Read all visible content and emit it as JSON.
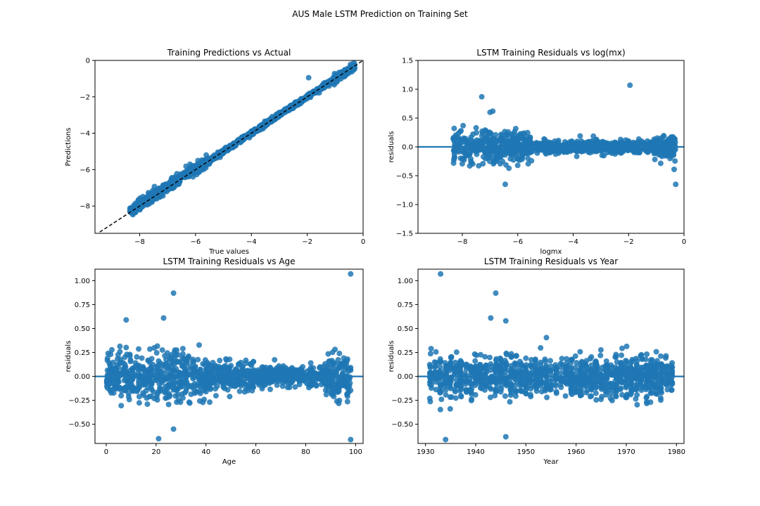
{
  "suptitle": "AUS Male LSTM Prediction on Training Set",
  "colors": {
    "points": "#1f77b4",
    "identity_line": "#000000",
    "zero_line": "#1f77b4"
  },
  "chart_data": [
    {
      "id": "pred-vs-actual",
      "type": "scatter",
      "title": "Training Predictions vs Actual",
      "xlabel": "True values",
      "ylabel": "Predictions",
      "xlim": [
        -9.6,
        0
      ],
      "ylim": [
        -9.5,
        0
      ],
      "xticks": [
        -8,
        -6,
        -4,
        -2,
        0
      ],
      "yticks": [
        -8,
        -6,
        -4,
        -2,
        0
      ],
      "identity_line": true,
      "x_range": [
        -8.35,
        -0.3
      ],
      "y_relation": "y ≈ x with small scatter",
      "outliers": [
        {
          "x": -1.95,
          "y": -0.95
        }
      ]
    },
    {
      "id": "resid-vs-logmx",
      "type": "scatter",
      "title": "LSTM Training Residuals vs log(mx)",
      "xlabel": "logmx",
      "ylabel": "residuals",
      "xlim": [
        -9.6,
        0
      ],
      "ylim": [
        -1.5,
        1.5
      ],
      "xticks": [
        -8,
        -6,
        -4,
        -2,
        0
      ],
      "yticks": [
        -1.5,
        -1.0,
        -0.5,
        0.0,
        0.5,
        1.0,
        1.5
      ],
      "zero_line": true,
      "x_range": [
        -8.35,
        -0.3
      ],
      "outliers": [
        {
          "x": -7.3,
          "y": 0.87
        },
        {
          "x": -1.95,
          "y": 1.07
        },
        {
          "x": -0.3,
          "y": -0.65
        },
        {
          "x": -6.45,
          "y": -0.65
        },
        {
          "x": -6.9,
          "y": 0.62
        },
        {
          "x": -7.0,
          "y": 0.6
        }
      ]
    },
    {
      "id": "resid-vs-age",
      "type": "scatter",
      "title": "LSTM Training  Residuals vs Age",
      "xlabel": "Age",
      "ylabel": "residuals",
      "xlim": [
        -4.5,
        103
      ],
      "ylim": [
        -0.7,
        1.12
      ],
      "xticks": [
        0,
        20,
        40,
        60,
        80,
        100
      ],
      "yticks": [
        -0.5,
        -0.25,
        0.0,
        0.25,
        0.5,
        0.75,
        1.0
      ],
      "ytick_labels": [
        "−0.50",
        "−0.25",
        "0.00",
        "0.25",
        "0.50",
        "0.75",
        "1.00"
      ],
      "zero_line": true,
      "x_range": [
        0,
        98
      ],
      "outliers": [
        {
          "x": 27,
          "y": 0.87
        },
        {
          "x": 98,
          "y": 1.07
        },
        {
          "x": 98,
          "y": -0.66
        },
        {
          "x": 21,
          "y": -0.65
        },
        {
          "x": 27,
          "y": -0.55
        },
        {
          "x": 8,
          "y": 0.59
        },
        {
          "x": 23,
          "y": 0.61
        }
      ]
    },
    {
      "id": "resid-vs-year",
      "type": "scatter",
      "title": "LSTM Training  Residuals vs Year",
      "xlabel": "Year",
      "ylabel": "residuals",
      "xlim": [
        1928.5,
        1981.5
      ],
      "ylim": [
        -0.7,
        1.12
      ],
      "xticks": [
        1930,
        1940,
        1950,
        1960,
        1970,
        1980
      ],
      "yticks": [
        -0.5,
        -0.25,
        0.0,
        0.25,
        0.5,
        0.75,
        1.0
      ],
      "ytick_labels": [
        "−0.50",
        "−0.25",
        "0.00",
        "0.25",
        "0.50",
        "0.75",
        "1.00"
      ],
      "zero_line": true,
      "x_range": [
        1931,
        1979
      ],
      "outliers": [
        {
          "x": 1933,
          "y": 1.07
        },
        {
          "x": 1944,
          "y": 0.87
        },
        {
          "x": 1934,
          "y": -0.66
        },
        {
          "x": 1946,
          "y": -0.63
        },
        {
          "x": 1943,
          "y": 0.61
        },
        {
          "x": 1946,
          "y": 0.58
        }
      ]
    }
  ]
}
